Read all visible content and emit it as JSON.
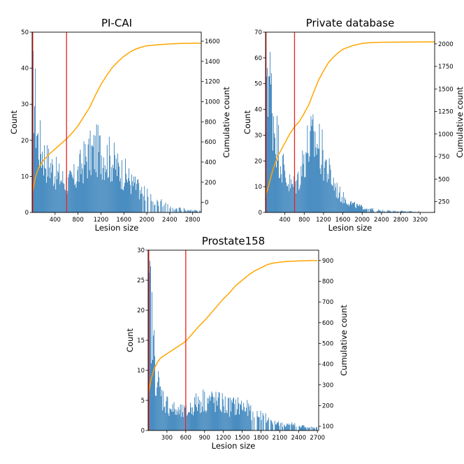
{
  "colors": {
    "bar": "#2f7cb8",
    "cumulative": "#ffa500",
    "marker": "#e8211e",
    "axis": "#000000"
  },
  "chart_data": [
    {
      "type": "bar",
      "title": "PI-CAI",
      "xlabel": "Lesion size",
      "ylabel": "Count",
      "y2label": "Cumulative count",
      "xlim": [
        0,
        2950
      ],
      "ylim": [
        0,
        50
      ],
      "y2lim": [
        -100,
        1690
      ],
      "xticks": [
        "400",
        "800",
        "1200",
        "1600",
        "2000",
        "2400",
        "2800"
      ],
      "xtick_values": [
        400,
        800,
        1200,
        1600,
        2000,
        2400,
        2800
      ],
      "yticks": [
        "0",
        "10",
        "20",
        "30",
        "40",
        "50"
      ],
      "ytick_values": [
        0,
        10,
        20,
        30,
        40,
        50
      ],
      "y2ticks": [
        "0",
        "200",
        "400",
        "600",
        "800",
        "1000",
        "1200",
        "1400",
        "1600"
      ],
      "y2tick_values": [
        0,
        200,
        400,
        600,
        800,
        1000,
        1200,
        1400,
        1600
      ],
      "vlines": [
        10,
        600
      ],
      "hist_anchors": [
        [
          10,
          30
        ],
        [
          30,
          36
        ],
        [
          60,
          28
        ],
        [
          100,
          20
        ],
        [
          150,
          18
        ],
        [
          200,
          16
        ],
        [
          260,
          14
        ],
        [
          330,
          13
        ],
        [
          400,
          11
        ],
        [
          470,
          10
        ],
        [
          540,
          9
        ],
        [
          620,
          8
        ],
        [
          700,
          9
        ],
        [
          780,
          10
        ],
        [
          860,
          13
        ],
        [
          940,
          15
        ],
        [
          1020,
          16
        ],
        [
          1100,
          17
        ],
        [
          1180,
          17
        ],
        [
          1260,
          16
        ],
        [
          1340,
          15
        ],
        [
          1420,
          14
        ],
        [
          1500,
          12
        ],
        [
          1580,
          11
        ],
        [
          1660,
          10
        ],
        [
          1740,
          8
        ],
        [
          1820,
          7
        ],
        [
          1900,
          6
        ],
        [
          1980,
          5
        ],
        [
          2060,
          4
        ],
        [
          2140,
          3
        ],
        [
          2220,
          3
        ],
        [
          2300,
          2
        ],
        [
          2380,
          2
        ],
        [
          2460,
          1
        ],
        [
          2540,
          1
        ],
        [
          2620,
          1
        ],
        [
          2700,
          0.7
        ],
        [
          2800,
          0.5
        ],
        [
          2900,
          0.4
        ]
      ],
      "cumulative": [
        [
          0,
          70
        ],
        [
          10,
          110
        ],
        [
          60,
          260
        ],
        [
          120,
          350
        ],
        [
          200,
          420
        ],
        [
          300,
          480
        ],
        [
          400,
          530
        ],
        [
          500,
          580
        ],
        [
          600,
          630
        ],
        [
          700,
          690
        ],
        [
          800,
          760
        ],
        [
          900,
          850
        ],
        [
          1000,
          940
        ],
        [
          1100,
          1060
        ],
        [
          1200,
          1170
        ],
        [
          1300,
          1260
        ],
        [
          1400,
          1340
        ],
        [
          1500,
          1400
        ],
        [
          1600,
          1450
        ],
        [
          1700,
          1490
        ],
        [
          1800,
          1520
        ],
        [
          1900,
          1540
        ],
        [
          2000,
          1555
        ],
        [
          2200,
          1565
        ],
        [
          2400,
          1573
        ],
        [
          2600,
          1578
        ],
        [
          2800,
          1580
        ],
        [
          2950,
          1581
        ]
      ]
    },
    {
      "type": "bar",
      "title": "Private database",
      "xlabel": "Lesion size",
      "ylabel": "Count",
      "y2label": "Cumulative count",
      "xlim": [
        0,
        3500
      ],
      "ylim": [
        0,
        70
      ],
      "y2lim": [
        130,
        2130
      ],
      "xticks": [
        "400",
        "800",
        "1200",
        "1600",
        "2000",
        "2400",
        "2800",
        "3200"
      ],
      "xtick_values": [
        400,
        800,
        1200,
        1600,
        2000,
        2400,
        2800,
        3200
      ],
      "yticks": [
        "0",
        "10",
        "20",
        "30",
        "40",
        "50",
        "60",
        "70"
      ],
      "ytick_values": [
        0,
        10,
        20,
        30,
        40,
        50,
        60,
        70
      ],
      "y2ticks": [
        "250",
        "500",
        "750",
        "1000",
        "1250",
        "1500",
        "1750",
        "2000"
      ],
      "y2tick_values": [
        250,
        500,
        750,
        1000,
        1250,
        1500,
        1750,
        2000
      ],
      "vlines": [
        10,
        600
      ],
      "hist_anchors": [
        [
          10,
          60
        ],
        [
          30,
          62
        ],
        [
          60,
          55
        ],
        [
          100,
          48
        ],
        [
          150,
          40
        ],
        [
          200,
          33
        ],
        [
          260,
          26
        ],
        [
          330,
          20
        ],
        [
          400,
          15
        ],
        [
          470,
          12
        ],
        [
          540,
          10
        ],
        [
          620,
          11
        ],
        [
          700,
          14
        ],
        [
          780,
          20
        ],
        [
          860,
          25
        ],
        [
          940,
          27
        ],
        [
          1020,
          28
        ],
        [
          1100,
          26
        ],
        [
          1180,
          22
        ],
        [
          1260,
          18
        ],
        [
          1340,
          14
        ],
        [
          1420,
          11
        ],
        [
          1500,
          8
        ],
        [
          1580,
          6
        ],
        [
          1660,
          5
        ],
        [
          1740,
          4
        ],
        [
          1820,
          3
        ],
        [
          1900,
          2.5
        ],
        [
          2000,
          2
        ],
        [
          2100,
          1.5
        ],
        [
          2200,
          1.2
        ],
        [
          2300,
          1
        ],
        [
          2400,
          0.8
        ],
        [
          2600,
          0.6
        ],
        [
          2800,
          0.5
        ],
        [
          3000,
          0.4
        ],
        [
          3200,
          0.3
        ],
        [
          3450,
          0.3
        ]
      ],
      "cumulative": [
        [
          0,
          270
        ],
        [
          10,
          330
        ],
        [
          60,
          420
        ],
        [
          150,
          600
        ],
        [
          250,
          750
        ],
        [
          400,
          900
        ],
        [
          500,
          1000
        ],
        [
          600,
          1080
        ],
        [
          700,
          1140
        ],
        [
          800,
          1230
        ],
        [
          900,
          1330
        ],
        [
          1000,
          1470
        ],
        [
          1100,
          1600
        ],
        [
          1200,
          1700
        ],
        [
          1300,
          1790
        ],
        [
          1400,
          1850
        ],
        [
          1500,
          1900
        ],
        [
          1600,
          1940
        ],
        [
          1800,
          1980
        ],
        [
          2000,
          2005
        ],
        [
          2200,
          2015
        ],
        [
          2400,
          2018
        ],
        [
          2800,
          2020
        ],
        [
          3500,
          2022
        ]
      ]
    },
    {
      "type": "bar",
      "title": "Prostate158",
      "xlabel": "Lesion size",
      "ylabel": "Count",
      "y2label": "Cumulative count",
      "xlim": [
        0,
        2720
      ],
      "ylim": [
        0,
        30
      ],
      "y2lim": [
        80,
        950
      ],
      "xticks": [
        "300",
        "600",
        "900",
        "1200",
        "1500",
        "1800",
        "2100",
        "2400",
        "2700"
      ],
      "xtick_values": [
        300,
        600,
        900,
        1200,
        1500,
        1800,
        2100,
        2400,
        2700
      ],
      "yticks": [
        "0",
        "5",
        "10",
        "15",
        "20",
        "25",
        "30"
      ],
      "ytick_values": [
        0,
        5,
        10,
        15,
        20,
        25,
        30
      ],
      "y2ticks": [
        "100",
        "200",
        "300",
        "400",
        "500",
        "600",
        "700",
        "800",
        "900"
      ],
      "y2tick_values": [
        100,
        200,
        300,
        400,
        500,
        600,
        700,
        800,
        900
      ],
      "vlines": [
        10,
        600
      ],
      "hist_anchors": [
        [
          10,
          20
        ],
        [
          30,
          23
        ],
        [
          60,
          17
        ],
        [
          100,
          12
        ],
        [
          150,
          8
        ],
        [
          200,
          6
        ],
        [
          260,
          5
        ],
        [
          330,
          4
        ],
        [
          400,
          3.5
        ],
        [
          470,
          3
        ],
        [
          540,
          3
        ],
        [
          620,
          3
        ],
        [
          700,
          4
        ],
        [
          780,
          4.5
        ],
        [
          860,
          5
        ],
        [
          940,
          5
        ],
        [
          1020,
          5
        ],
        [
          1100,
          4.5
        ],
        [
          1180,
          4.5
        ],
        [
          1260,
          4
        ],
        [
          1340,
          4
        ],
        [
          1420,
          4
        ],
        [
          1500,
          4
        ],
        [
          1580,
          3.5
        ],
        [
          1660,
          3
        ],
        [
          1740,
          3
        ],
        [
          1820,
          2.5
        ],
        [
          1900,
          2
        ],
        [
          1980,
          1.5
        ],
        [
          2060,
          1.2
        ],
        [
          2140,
          1
        ],
        [
          2220,
          1
        ],
        [
          2300,
          1
        ],
        [
          2400,
          0.8
        ],
        [
          2500,
          0.6
        ],
        [
          2650,
          0.4
        ]
      ],
      "cumulative": [
        [
          0,
          230
        ],
        [
          10,
          260
        ],
        [
          40,
          320
        ],
        [
          100,
          380
        ],
        [
          150,
          410
        ],
        [
          200,
          430
        ],
        [
          300,
          450
        ],
        [
          400,
          470
        ],
        [
          500,
          490
        ],
        [
          600,
          510
        ],
        [
          700,
          545
        ],
        [
          800,
          580
        ],
        [
          900,
          610
        ],
        [
          1000,
          645
        ],
        [
          1100,
          680
        ],
        [
          1200,
          715
        ],
        [
          1300,
          745
        ],
        [
          1400,
          780
        ],
        [
          1500,
          805
        ],
        [
          1600,
          830
        ],
        [
          1700,
          850
        ],
        [
          1800,
          865
        ],
        [
          1900,
          880
        ],
        [
          2000,
          888
        ],
        [
          2100,
          892
        ],
        [
          2200,
          895
        ],
        [
          2400,
          898
        ],
        [
          2600,
          900
        ],
        [
          2700,
          900
        ]
      ]
    }
  ]
}
